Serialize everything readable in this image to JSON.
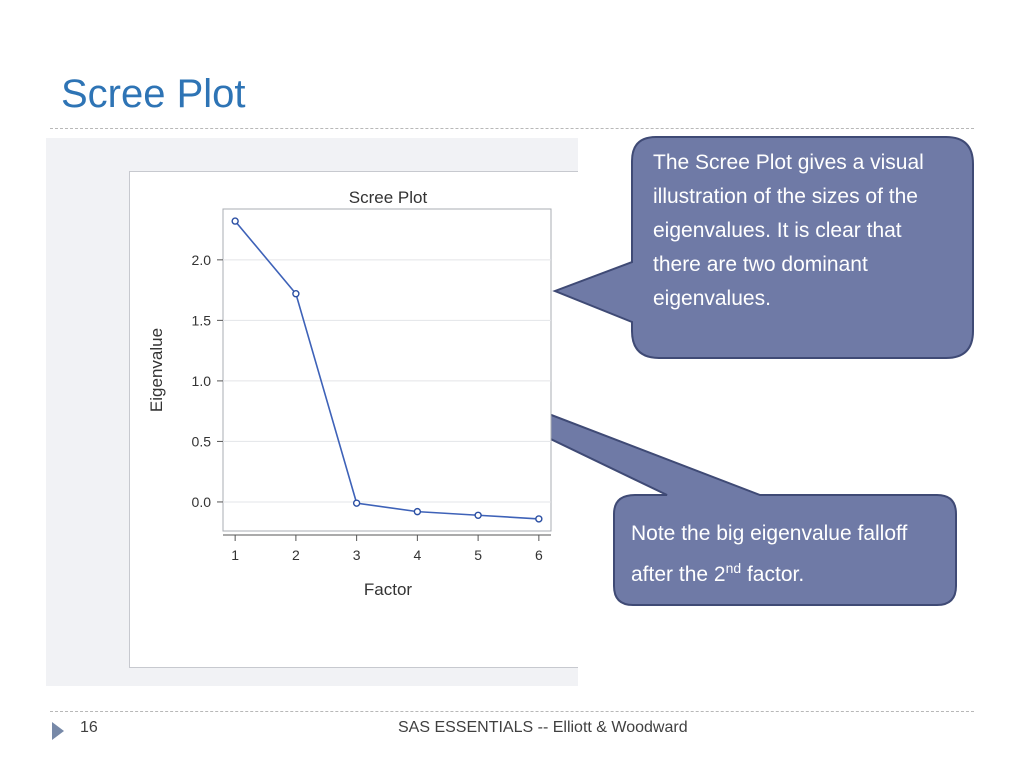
{
  "slide": {
    "title": "Scree Plot"
  },
  "callouts": {
    "main": "The Scree Plot gives a visual illustration of the sizes of the eigenvalues. It is clear that there are two dominant eigenvalues.",
    "note_before": "Note the big eigenvalue falloff after the 2",
    "note_sup": "nd",
    "note_after": " factor."
  },
  "footer": {
    "page_number": "16",
    "text": "SAS ESSENTIALS -- Elliott & Woodward"
  },
  "colors": {
    "title": "#2e74b5",
    "callout_fill": "#6f7aa6",
    "callout_border": "#3f4a75",
    "series_line": "#3e62b8"
  },
  "chart_data": {
    "type": "line",
    "title": "Scree Plot",
    "xlabel": "Factor",
    "ylabel": "Eigenvalue",
    "x": [
      1,
      2,
      3,
      4,
      5,
      6
    ],
    "xticks": [
      "1",
      "2",
      "3",
      "4",
      "5",
      "6"
    ],
    "yticks": [
      "0.0",
      "0.5",
      "1.0",
      "1.5",
      "2.0"
    ],
    "ytick_values": [
      0.0,
      0.5,
      1.0,
      1.5,
      2.0
    ],
    "series": [
      {
        "values": [
          2.32,
          1.72,
          -0.01,
          -0.08,
          -0.11,
          -0.14
        ]
      }
    ],
    "xlim": [
      0.8,
      6.2
    ],
    "ylim": [
      -0.24,
      2.42
    ],
    "grid": true,
    "markers": "open-circle"
  }
}
